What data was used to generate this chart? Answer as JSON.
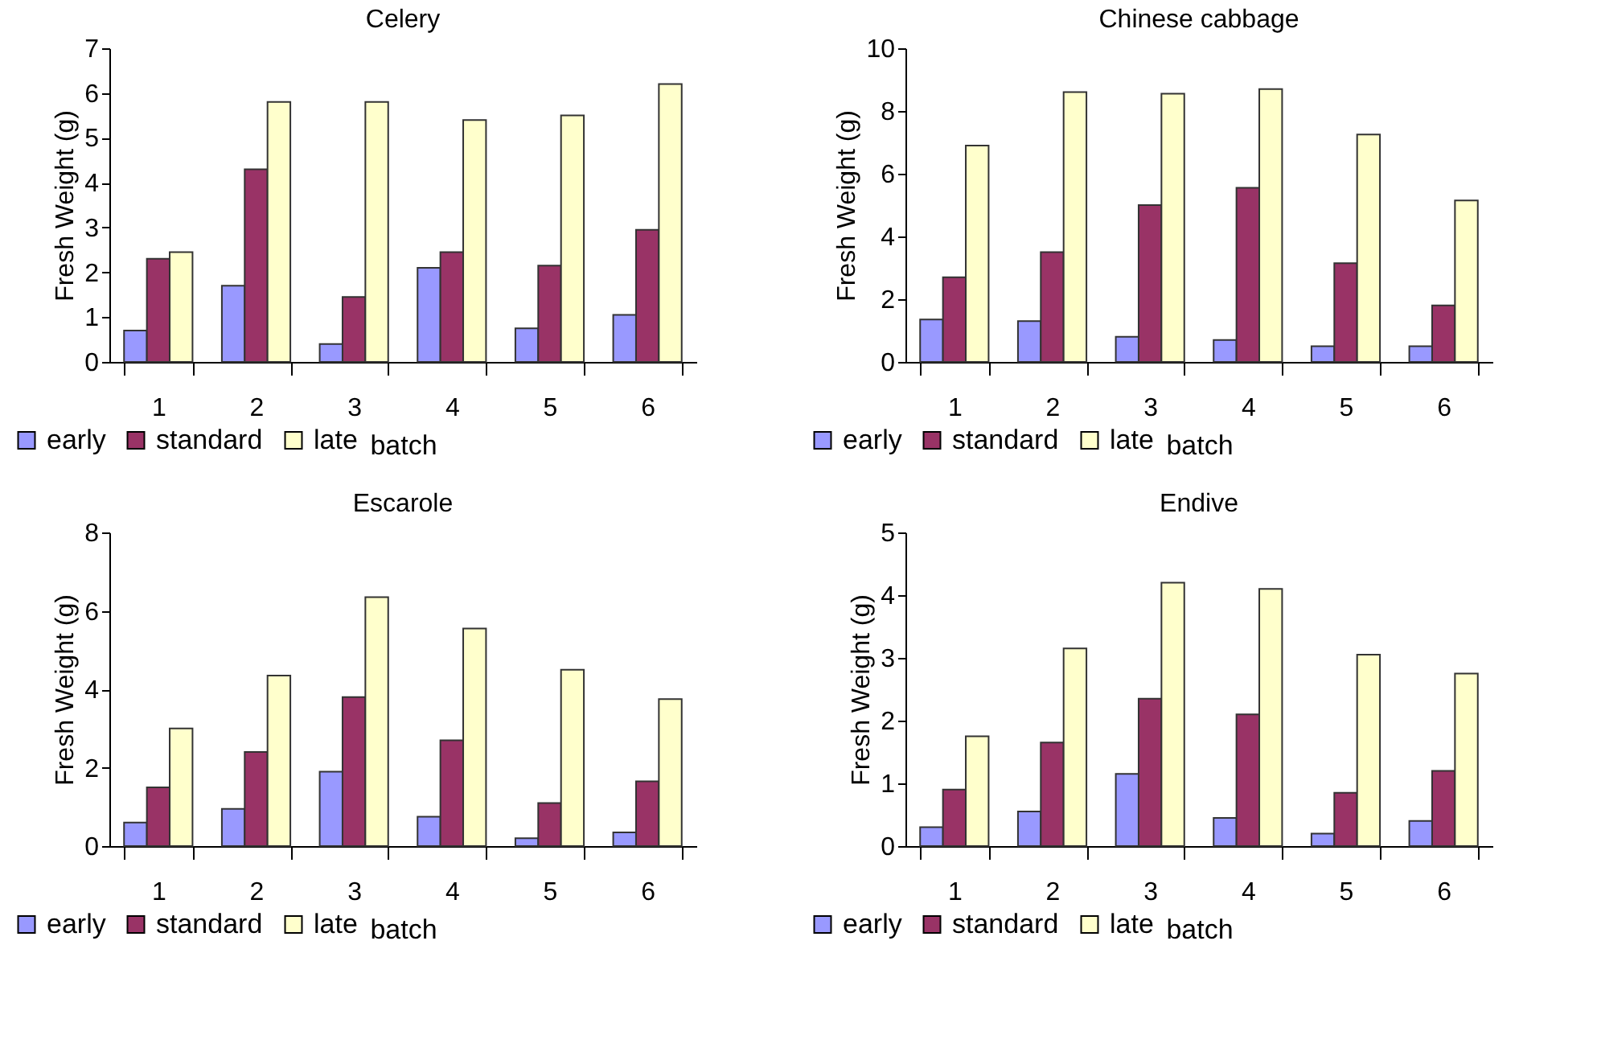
{
  "chart_data": [
    {
      "type": "bar",
      "title": "Celery",
      "xlabel": "batch",
      "ylabel": "Fresh Weight (g)",
      "categories": [
        "1",
        "2",
        "3",
        "4",
        "5",
        "6"
      ],
      "ylim": [
        0,
        7
      ],
      "yticks": [
        0,
        1,
        2,
        3,
        4,
        5,
        6,
        7
      ],
      "grid": false,
      "legend": "bottom left",
      "series": [
        {
          "name": "early",
          "color": "#9999ff",
          "values": [
            0.7,
            1.7,
            0.4,
            2.1,
            0.75,
            1.05
          ]
        },
        {
          "name": "standard",
          "color": "#993366",
          "values": [
            2.3,
            4.3,
            1.45,
            2.45,
            2.15,
            2.95
          ]
        },
        {
          "name": "late",
          "color": "#ffffcc",
          "values": [
            2.45,
            5.8,
            5.8,
            5.4,
            5.5,
            6.2
          ]
        }
      ]
    },
    {
      "type": "bar",
      "title": "Chinese cabbage",
      "xlabel": "batch",
      "ylabel": "Fresh Weight (g)",
      "categories": [
        "1",
        "2",
        "3",
        "4",
        "5",
        "6"
      ],
      "ylim": [
        0,
        10
      ],
      "yticks": [
        0,
        2,
        4,
        6,
        8,
        10
      ],
      "grid": false,
      "legend": "bottom left",
      "series": [
        {
          "name": "early",
          "color": "#9999ff",
          "values": [
            1.35,
            1.3,
            0.8,
            0.7,
            0.5,
            0.5
          ]
        },
        {
          "name": "standard",
          "color": "#993366",
          "values": [
            2.7,
            3.5,
            5.0,
            5.55,
            3.15,
            1.8
          ]
        },
        {
          "name": "late",
          "color": "#ffffcc",
          "values": [
            6.9,
            8.6,
            8.55,
            8.7,
            7.25,
            5.15
          ]
        }
      ]
    },
    {
      "type": "bar",
      "title": "Escarole",
      "xlabel": "batch",
      "ylabel": "Fresh Weight (g)",
      "categories": [
        "1",
        "2",
        "3",
        "4",
        "5",
        "6"
      ],
      "ylim": [
        0,
        8
      ],
      "yticks": [
        0,
        2,
        4,
        6,
        8
      ],
      "grid": false,
      "legend": "bottom left",
      "series": [
        {
          "name": "early",
          "color": "#9999ff",
          "values": [
            0.6,
            0.95,
            1.9,
            0.75,
            0.2,
            0.35
          ]
        },
        {
          "name": "standard",
          "color": "#993366",
          "values": [
            1.5,
            2.4,
            3.8,
            2.7,
            1.1,
            1.65
          ]
        },
        {
          "name": "late",
          "color": "#ffffcc",
          "values": [
            3.0,
            4.35,
            6.35,
            5.55,
            4.5,
            3.75
          ]
        }
      ]
    },
    {
      "type": "bar",
      "title": "Endive",
      "xlabel": "batch",
      "ylabel": "Fresh Weight (g)",
      "categories": [
        "1",
        "2",
        "3",
        "4",
        "5",
        "6"
      ],
      "ylim": [
        0,
        5
      ],
      "yticks": [
        0,
        1,
        2,
        3,
        4,
        5
      ],
      "grid": false,
      "legend": "bottom left",
      "series": [
        {
          "name": "early",
          "color": "#9999ff",
          "values": [
            0.3,
            0.55,
            1.15,
            0.45,
            0.2,
            0.4
          ]
        },
        {
          "name": "standard",
          "color": "#993366",
          "values": [
            0.9,
            1.65,
            2.35,
            2.1,
            0.85,
            1.2
          ]
        },
        {
          "name": "late",
          "color": "#ffffcc",
          "values": [
            1.75,
            3.15,
            4.2,
            4.1,
            3.05,
            2.75
          ]
        }
      ]
    }
  ]
}
